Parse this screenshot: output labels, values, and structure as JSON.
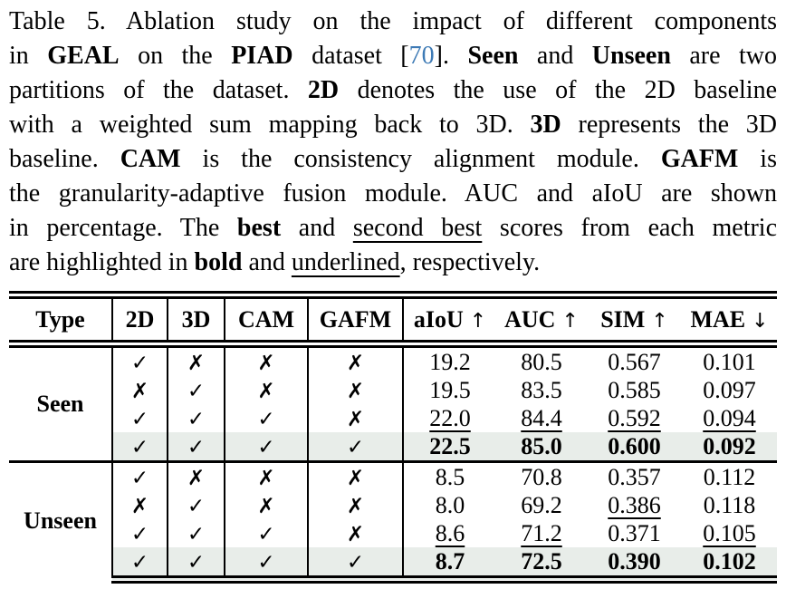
{
  "colors": {
    "citation_link": "#3d7ab5",
    "highlight_row": "#e8ede9",
    "rule": "#000000"
  },
  "caption": {
    "lines": [
      {
        "last": false,
        "segments": [
          {
            "t": "Table 5.  Ablation study on the impact of different components"
          }
        ]
      },
      {
        "last": false,
        "segments": [
          {
            "t": "in "
          },
          {
            "t": "GEAL",
            "b": true
          },
          {
            "t": " on the "
          },
          {
            "t": "PIAD",
            "b": true
          },
          {
            "t": " dataset ["
          },
          {
            "t": "70",
            "link": true
          },
          {
            "t": "].  "
          },
          {
            "t": "Seen",
            "b": true
          },
          {
            "t": " and "
          },
          {
            "t": "Unseen",
            "b": true
          },
          {
            "t": " are two"
          }
        ]
      },
      {
        "last": false,
        "segments": [
          {
            "t": "partitions of the dataset.  "
          },
          {
            "t": "2D",
            "b": true
          },
          {
            "t": " denotes the use of the 2D baseline"
          }
        ]
      },
      {
        "last": false,
        "segments": [
          {
            "t": "with a weighted sum mapping back to 3D. "
          },
          {
            "t": "3D",
            "b": true
          },
          {
            "t": " represents the 3D"
          }
        ]
      },
      {
        "last": false,
        "segments": [
          {
            "t": "baseline.  "
          },
          {
            "t": "CAM",
            "b": true
          },
          {
            "t": " is the consistency alignment module.  "
          },
          {
            "t": "GAFM",
            "b": true
          },
          {
            "t": " is"
          }
        ]
      },
      {
        "last": false,
        "segments": [
          {
            "t": "the granularity-adaptive fusion module. AUC and aIoU are shown"
          }
        ]
      },
      {
        "last": false,
        "segments": [
          {
            "t": "in percentage.  The "
          },
          {
            "t": "best",
            "b": true
          },
          {
            "t": " and "
          },
          {
            "t": "second best",
            "u": true
          },
          {
            "t": " scores from each metric"
          }
        ]
      },
      {
        "last": true,
        "segments": [
          {
            "t": "are highlighted in "
          },
          {
            "t": "bold",
            "b": true
          },
          {
            "t": " and "
          },
          {
            "t": "underlined",
            "u": true
          },
          {
            "t": ", respectively."
          }
        ]
      }
    ]
  },
  "table": {
    "check_glyph": "✓",
    "cross_glyph": "✗",
    "headers": [
      {
        "label": "Type",
        "arrow": ""
      },
      {
        "label": "2D",
        "arrow": ""
      },
      {
        "label": "3D",
        "arrow": ""
      },
      {
        "label": "CAM",
        "arrow": ""
      },
      {
        "label": "GAFM",
        "arrow": ""
      },
      {
        "label": "aIoU",
        "arrow": "↑"
      },
      {
        "label": "AUC",
        "arrow": "↑"
      },
      {
        "label": "SIM",
        "arrow": "↑"
      },
      {
        "label": "MAE",
        "arrow": "↓"
      }
    ],
    "groups": [
      {
        "type": "Seen",
        "rows": [
          {
            "highlight": false,
            "checks": [
              "check",
              "cross",
              "cross",
              "cross"
            ],
            "values": [
              {
                "v": "19.2"
              },
              {
                "v": "80.5"
              },
              {
                "v": "0.567"
              },
              {
                "v": "0.101"
              }
            ]
          },
          {
            "highlight": false,
            "checks": [
              "cross",
              "check",
              "cross",
              "cross"
            ],
            "values": [
              {
                "v": "19.5"
              },
              {
                "v": "83.5"
              },
              {
                "v": "0.585"
              },
              {
                "v": "0.097"
              }
            ]
          },
          {
            "highlight": false,
            "checks": [
              "check",
              "check",
              "check",
              "cross"
            ],
            "values": [
              {
                "v": "22.0",
                "u": true
              },
              {
                "v": "84.4",
                "u": true
              },
              {
                "v": "0.592",
                "u": true
              },
              {
                "v": "0.094",
                "u": true
              }
            ]
          },
          {
            "highlight": true,
            "checks": [
              "check",
              "check",
              "check",
              "check"
            ],
            "values": [
              {
                "v": "22.5",
                "b": true
              },
              {
                "v": "85.0",
                "b": true
              },
              {
                "v": "0.600",
                "b": true
              },
              {
                "v": "0.092",
                "b": true
              }
            ]
          }
        ]
      },
      {
        "type": "Unseen",
        "rows": [
          {
            "highlight": false,
            "checks": [
              "check",
              "cross",
              "cross",
              "cross"
            ],
            "values": [
              {
                "v": "8.5"
              },
              {
                "v": "70.8"
              },
              {
                "v": "0.357"
              },
              {
                "v": "0.112"
              }
            ]
          },
          {
            "highlight": false,
            "checks": [
              "cross",
              "check",
              "cross",
              "cross"
            ],
            "values": [
              {
                "v": "8.0"
              },
              {
                "v": "69.2"
              },
              {
                "v": "0.386",
                "u": true
              },
              {
                "v": "0.118"
              }
            ]
          },
          {
            "highlight": false,
            "checks": [
              "check",
              "check",
              "check",
              "cross"
            ],
            "values": [
              {
                "v": "8.6",
                "u": true
              },
              {
                "v": "71.2",
                "u": true
              },
              {
                "v": "0.371"
              },
              {
                "v": "0.105",
                "u": true
              }
            ]
          },
          {
            "highlight": true,
            "checks": [
              "check",
              "check",
              "check",
              "check"
            ],
            "values": [
              {
                "v": "8.7",
                "b": true
              },
              {
                "v": "72.5",
                "b": true
              },
              {
                "v": "0.390",
                "b": true
              },
              {
                "v": "0.102",
                "b": true
              }
            ]
          }
        ]
      }
    ]
  }
}
